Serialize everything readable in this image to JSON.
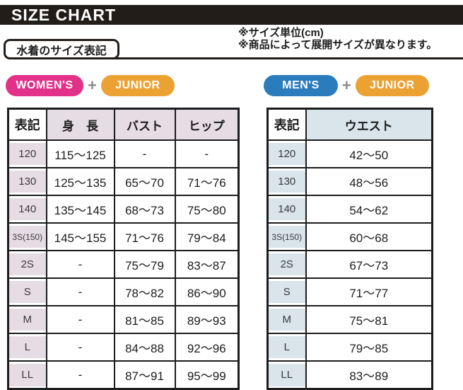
{
  "title": "SIZE CHART",
  "section_label": "水着のサイズ表記",
  "notes": {
    "unit": "※サイズ単位(cm)",
    "availability": "※商品によって展開サイズが異なります。"
  },
  "womens_chart": {
    "badges": {
      "primary": "WOMEN'S",
      "plus": "+",
      "secondary": "JUNIOR"
    },
    "headers": [
      "表記",
      "身　長",
      "バスト",
      "ヒップ"
    ],
    "rows": [
      [
        "120",
        "115～125",
        "-",
        "-"
      ],
      [
        "130",
        "125～135",
        "65～70",
        "71～76"
      ],
      [
        "140",
        "135～145",
        "68～73",
        "75～80"
      ],
      [
        "3S(150)",
        "145～155",
        "71～76",
        "79～84"
      ],
      [
        "2S",
        "-",
        "75～79",
        "83～87"
      ],
      [
        "S",
        "-",
        "78～82",
        "86～90"
      ],
      [
        "M",
        "-",
        "81～85",
        "89～93"
      ],
      [
        "L",
        "-",
        "84～88",
        "92～96"
      ],
      [
        "LL",
        "-",
        "87～91",
        "95～99"
      ]
    ]
  },
  "mens_chart": {
    "badges": {
      "primary": "MEN'S",
      "plus": "+",
      "secondary": "JUNIOR"
    },
    "headers": [
      "表記",
      "ウエスト"
    ],
    "rows": [
      [
        "120",
        "42～50"
      ],
      [
        "130",
        "48～56"
      ],
      [
        "140",
        "54～62"
      ],
      [
        "3S(150)",
        "60～68"
      ],
      [
        "2S",
        "67～73"
      ],
      [
        "S",
        "71～77"
      ],
      [
        "M",
        "75～81"
      ],
      [
        "L",
        "79～85"
      ],
      [
        "LL",
        "83～89"
      ]
    ]
  },
  "colors": {
    "womens_badge": "#e23189",
    "mens_badge": "#2b7cbd",
    "junior_badge": "#eba233",
    "womens_table_tint": "#e6dde4",
    "mens_table_tint": "#d9e4eb",
    "title_bar": "#231d1a",
    "plus_sign": "#8c8c8c"
  }
}
